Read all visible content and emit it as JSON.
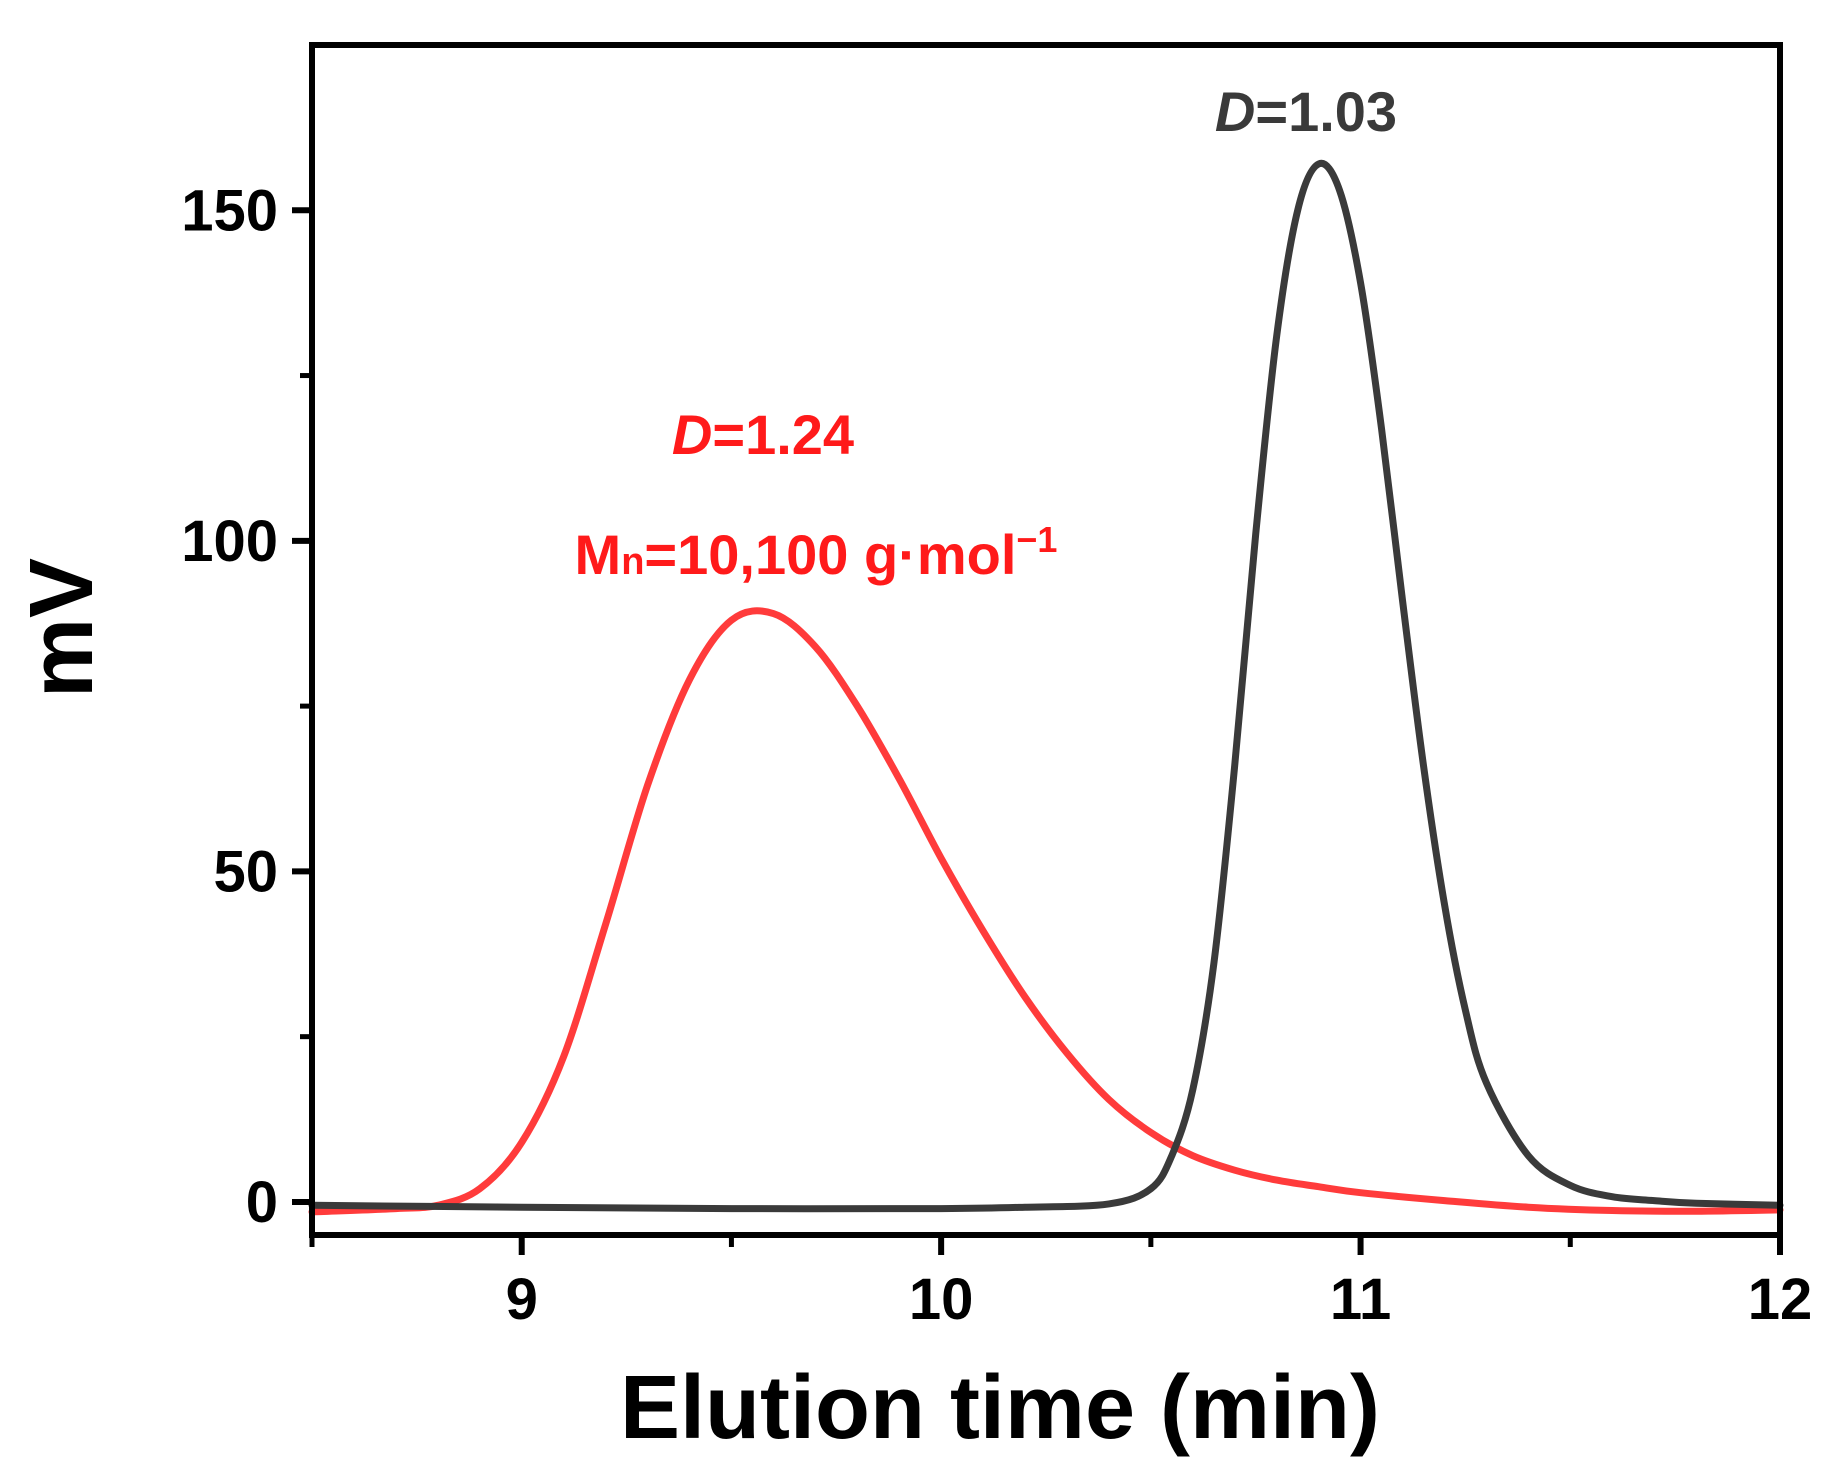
{
  "chart_data": {
    "type": "line",
    "title": "",
    "xlabel": "Elution time (min)",
    "ylabel": "mV",
    "xlim": [
      8.5,
      12
    ],
    "ylim": [
      -5,
      175
    ],
    "x_ticks": [
      9,
      10,
      11,
      12
    ],
    "x_tick_labels": [
      "9",
      "10",
      "11",
      "12"
    ],
    "x_minor_ticks": [
      8.5,
      9.5,
      10.5,
      11.5
    ],
    "y_ticks": [
      0,
      50,
      100,
      150
    ],
    "y_tick_labels": [
      "0",
      "50",
      "100",
      "150"
    ],
    "y_minor_ticks": [
      25,
      75,
      125
    ],
    "grid": false,
    "series": [
      {
        "name": "red trace",
        "color": "#ff3b3b",
        "x": [
          8.5,
          8.7,
          8.8,
          8.9,
          9.0,
          9.1,
          9.2,
          9.3,
          9.4,
          9.5,
          9.6,
          9.7,
          9.8,
          9.9,
          10.0,
          10.1,
          10.2,
          10.3,
          10.4,
          10.5,
          10.6,
          10.7,
          10.8,
          10.9,
          11.0,
          11.2,
          11.4,
          11.6,
          11.8,
          12.0
        ],
        "values": [
          -1.5,
          -1.0,
          -0.5,
          2,
          9,
          22,
          42,
          63,
          79,
          88,
          89,
          84,
          75,
          64,
          52,
          41,
          31,
          22.5,
          15.5,
          10.5,
          7,
          4.8,
          3.3,
          2.3,
          1.4,
          0.2,
          -0.8,
          -1.3,
          -1.4,
          -1.2
        ]
      },
      {
        "name": "black trace",
        "color": "#3a3a3a",
        "x": [
          8.5,
          9.0,
          9.5,
          10.0,
          10.2,
          10.4,
          10.5,
          10.55,
          10.6,
          10.65,
          10.7,
          10.75,
          10.8,
          10.85,
          10.9,
          10.95,
          11.0,
          11.05,
          11.1,
          11.15,
          11.2,
          11.25,
          11.3,
          11.4,
          11.5,
          11.6,
          11.7,
          11.8,
          12.0
        ],
        "values": [
          -0.5,
          -0.8,
          -1.0,
          -1.0,
          -0.8,
          -0.3,
          2,
          7,
          17,
          36,
          66,
          101,
          131,
          150,
          157,
          153,
          139,
          117,
          91,
          66,
          45,
          29,
          18,
          7,
          2.5,
          0.8,
          0.2,
          -0.2,
          -0.5
        ]
      }
    ],
    "annotations": {
      "black_label_symbol": "D",
      "black_label_value": "=1.03",
      "red_label_symbol": "D",
      "red_label_value": "=1.24",
      "red_mn_main": "M",
      "red_mn_sub": "n",
      "red_mn_value": "=10,100 g·mol",
      "red_mn_sup": "−1",
      "red_color": "#ff1a1a",
      "black_color": "#3a3a3a"
    }
  }
}
